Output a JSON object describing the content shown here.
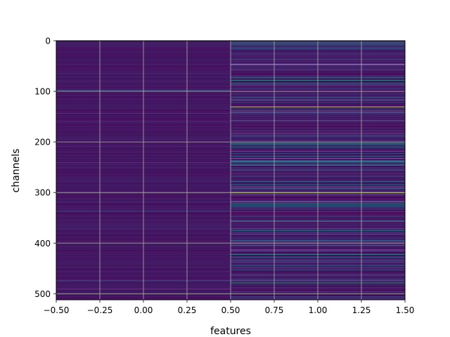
{
  "chart_data": {
    "type": "heatmap",
    "title": "",
    "xlabel": "features",
    "ylabel": "channels",
    "xlim": [
      -0.5,
      1.5
    ],
    "ylim": [
      512,
      0
    ],
    "y_inverted": true,
    "grid": true,
    "colormap": "viridis",
    "x_ticks": [
      "−0.50",
      "−0.25",
      "0.00",
      "0.25",
      "0.50",
      "0.75",
      "1.00",
      "1.25",
      "1.50"
    ],
    "y_ticks": [
      "0",
      "100",
      "200",
      "300",
      "400",
      "500"
    ],
    "columns": [
      0,
      1
    ],
    "rows": 512,
    "column_0_bright_rows": [
      {
        "row": 97,
        "value": 0.28
      },
      {
        "row": 143,
        "value": 0.2
      },
      {
        "row": 160,
        "value": 0.18
      },
      {
        "row": 240,
        "value": 0.18
      },
      {
        "row": 336,
        "value": 0.18
      },
      {
        "row": 474,
        "value": 0.3
      },
      {
        "row": 490,
        "value": 0.22
      }
    ],
    "column_1_bright_rows": [
      {
        "row": 5,
        "value": 0.55
      },
      {
        "row": 46,
        "value": 0.85
      },
      {
        "row": 72,
        "value": 0.45
      },
      {
        "row": 78,
        "value": 0.55
      },
      {
        "row": 84,
        "value": 0.5
      },
      {
        "row": 130,
        "value": 0.92
      },
      {
        "row": 137,
        "value": 0.5
      },
      {
        "row": 203,
        "value": 0.5
      },
      {
        "row": 232,
        "value": 0.55
      },
      {
        "row": 238,
        "value": 0.6
      },
      {
        "row": 245,
        "value": 0.5
      },
      {
        "row": 290,
        "value": 0.45
      },
      {
        "row": 300,
        "value": 0.98
      },
      {
        "row": 318,
        "value": 0.6
      },
      {
        "row": 322,
        "value": 0.5
      },
      {
        "row": 356,
        "value": 0.45
      },
      {
        "row": 375,
        "value": 0.45
      },
      {
        "row": 415,
        "value": 0.45
      },
      {
        "row": 422,
        "value": 0.5
      },
      {
        "row": 478,
        "value": 0.6
      }
    ],
    "x_axis_ticks_values": [
      -0.5,
      -0.25,
      0,
      0.25,
      0.5,
      0.75,
      1.0,
      1.25,
      1.5
    ],
    "y_axis_ticks_values": [
      0,
      100,
      200,
      300,
      400,
      500
    ]
  }
}
